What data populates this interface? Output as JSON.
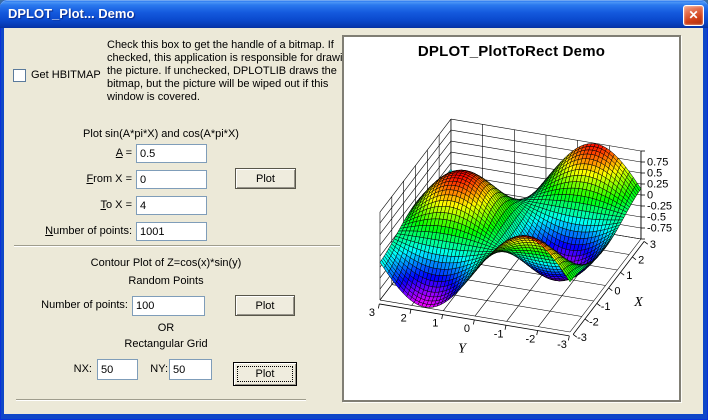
{
  "window": {
    "title": "DPLOT_Plot... Demo",
    "close_glyph": "✕"
  },
  "left_panel": {
    "hbitmap_checkbox": {
      "label": "Get HBITMAP",
      "checked": false
    },
    "hbitmap_description": "Check this box to get the handle of a bitmap. If checked, this application is responsible for drawing the picture. If unchecked, DPLOTLIB draws the bitmap, but the picture will be wiped out if this window is covered.",
    "sincos_section": {
      "heading": "Plot sin(A*pi*X) and cos(A*pi*X)",
      "a_field": {
        "mnemonic": "A",
        "label_rest": " =",
        "value": "0.5"
      },
      "fromx_field": {
        "mnemonic": "F",
        "label_rest": "rom X =",
        "value": "0"
      },
      "tox_field": {
        "mnemonic": "T",
        "label_rest": "o X =",
        "value": "4"
      },
      "npoints_field": {
        "mnemonic": "N",
        "label_rest": "umber of points:",
        "value": "1001"
      },
      "plot_button": "Plot"
    },
    "contour_section": {
      "heading": "Contour Plot of Z=cos(x)*sin(y)",
      "random_heading": "Random Points",
      "npoints_field": {
        "label": "Number of points:",
        "value": "100"
      },
      "random_plot_button": "Plot",
      "or_text": "OR",
      "grid_heading": "Rectangular Grid",
      "nx_field": {
        "label": "NX:",
        "value": "50"
      },
      "ny_field": {
        "label": "NY:",
        "value": "50"
      },
      "grid_plot_button": "Plot"
    }
  },
  "chart_data": {
    "type": "surface",
    "title": "DPLOT_PlotToRect Demo",
    "equation": "z = cos(x)*sin(y)",
    "x_range": [
      -3,
      3
    ],
    "y_range": [
      -3,
      3
    ],
    "z_range": [
      -1,
      1
    ],
    "grid_nx": 50,
    "grid_ny": 50,
    "x_ticks": [
      3,
      2,
      1,
      0,
      -1,
      -2,
      -3
    ],
    "y_ticks": [
      3,
      2,
      1,
      0,
      -1,
      -2,
      -3
    ],
    "z_ticks": [
      0.75,
      0.5,
      0.25,
      0,
      -0.25,
      -0.5,
      -0.75
    ],
    "z_grid_step": 0.25,
    "xlabel": "X",
    "ylabel": "Y",
    "grid": true,
    "mesh_color": "#000000",
    "colormap_low_to_high": [
      "#ff00ff",
      "#0000ff",
      "#00ffff",
      "#00ff00",
      "#ffff00",
      "#ff0000"
    ]
  }
}
